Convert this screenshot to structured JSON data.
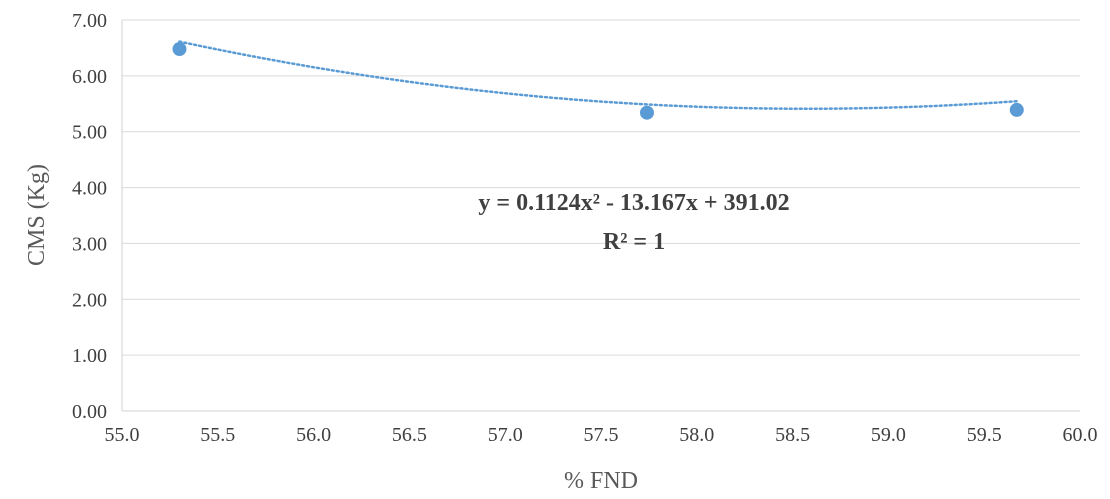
{
  "chart_data": {
    "type": "scatter",
    "title": "",
    "xlabel": "% FND",
    "ylabel": "CMS (Kg)",
    "xlim": [
      55.0,
      60.0
    ],
    "ylim": [
      0.0,
      7.0
    ],
    "x_ticks": [
      "55.0",
      "55.5",
      "56.0",
      "56.5",
      "57.0",
      "57.5",
      "58.0",
      "58.5",
      "59.0",
      "59.5",
      "60.0"
    ],
    "y_ticks": [
      "0.00",
      "1.00",
      "2.00",
      "3.00",
      "4.00",
      "5.00",
      "6.00",
      "7.00"
    ],
    "grid": "horizontal",
    "series": [
      {
        "points": [
          {
            "x": 55.3,
            "y": 6.48
          },
          {
            "x": 57.74,
            "y": 5.34
          },
          {
            "x": 59.67,
            "y": 5.39
          }
        ],
        "color": "#5B9BD5"
      }
    ],
    "trendline": {
      "type": "polynomial",
      "order": 2,
      "coefficients": [
        0.1124,
        -13.167,
        391.02
      ],
      "style": "dotted",
      "color": "#5B9BD5",
      "equation_text": "y = 0.1124x² - 13.167x + 391.02",
      "r2_text": "R² = 1"
    }
  }
}
